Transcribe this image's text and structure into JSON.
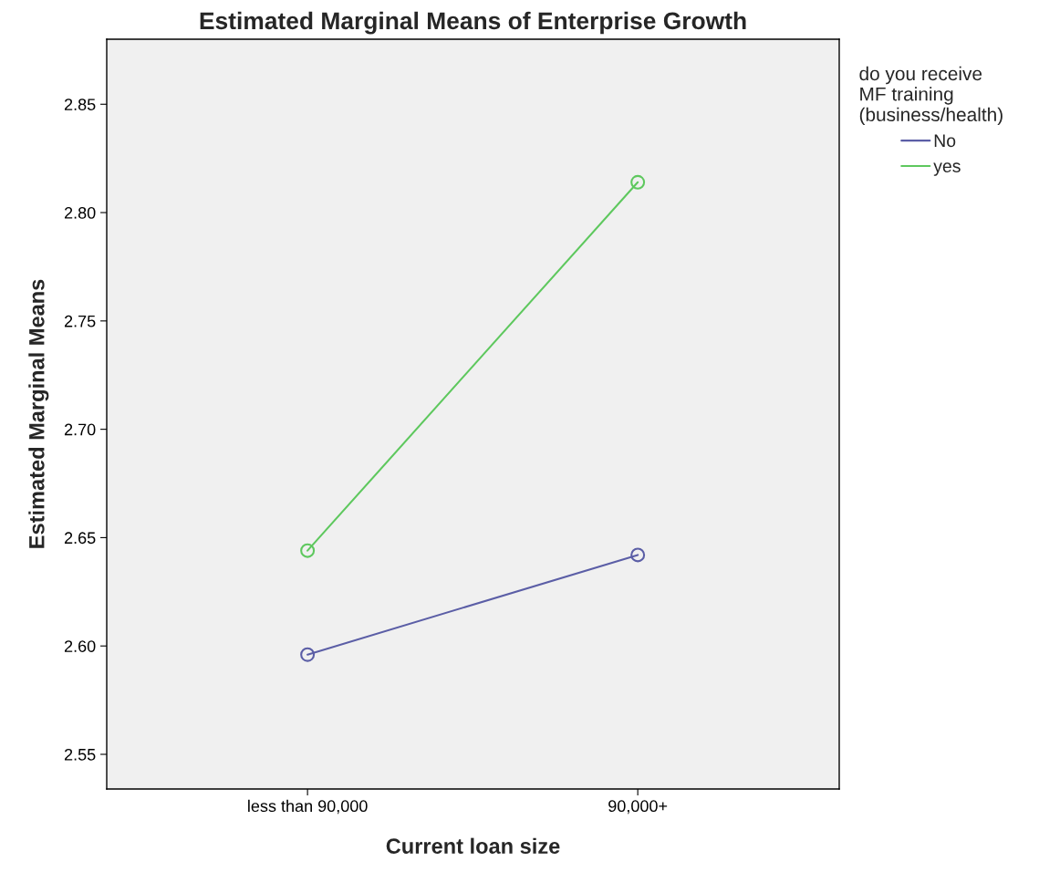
{
  "chart_data": {
    "type": "line",
    "title": "Estimated Marginal Means of Enterprise Growth",
    "xlabel": "Current loan size",
    "ylabel": "Estimated Marginal Means",
    "legend_title": "do you receive\nMF training\n(business/health)",
    "categories": [
      "less than 90,000",
      "90,000+"
    ],
    "series": [
      {
        "name": "No",
        "color": "#5b5ea6",
        "values": [
          2.596,
          2.642
        ]
      },
      {
        "name": "yes",
        "color": "#5ec85e",
        "values": [
          2.644,
          2.814
        ]
      }
    ],
    "ylim": [
      2.534,
      2.88
    ],
    "yticks": [
      {
        "value": 2.55,
        "label": "2.55"
      },
      {
        "value": 2.6,
        "label": "2.60"
      },
      {
        "value": 2.65,
        "label": "2.65"
      },
      {
        "value": 2.7,
        "label": "2.70"
      },
      {
        "value": 2.75,
        "label": "2.75"
      },
      {
        "value": 2.8,
        "label": "2.80"
      },
      {
        "value": 2.85,
        "label": "2.85"
      }
    ],
    "marker": "circle",
    "line_style": "solid",
    "grid": false,
    "legend": "top right"
  }
}
